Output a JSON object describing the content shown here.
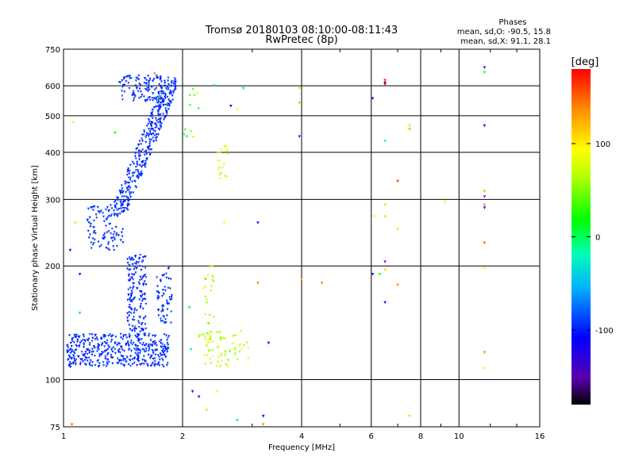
{
  "chart_data": {
    "type": "scatter",
    "title": "Tromsø 20180103 08:10:00-08:11:43",
    "subtitle": "RwPretec (8p)",
    "xlabel": "Frequency [MHz]",
    "ylabel": "Stationary phase Virtual Height [km]",
    "x_scale": "log",
    "y_scale": "log",
    "xlim": [
      1,
      16
    ],
    "ylim": [
      75,
      750
    ],
    "x_ticks": [
      {
        "value": 1,
        "label": "1"
      },
      {
        "value": 2,
        "label": "2"
      },
      {
        "value": 4,
        "label": "4"
      },
      {
        "value": 6,
        "label": "6"
      },
      {
        "value": 8,
        "label": "8"
      },
      {
        "value": 10,
        "label": "10"
      },
      {
        "value": 16,
        "label": "16"
      }
    ],
    "y_ticks": [
      {
        "value": 75,
        "label": "75"
      },
      {
        "value": 100,
        "label": "100"
      },
      {
        "value": 200,
        "label": "200"
      },
      {
        "value": 300,
        "label": "300"
      },
      {
        "value": 400,
        "label": "400"
      },
      {
        "value": 500,
        "label": "500"
      },
      {
        "value": 600,
        "label": "600"
      },
      {
        "value": 750,
        "label": "750"
      }
    ],
    "grid": true,
    "phase_info": {
      "header": "Phases",
      "line_o": "mean, sd,O: -90.5, 15.8",
      "line_x": "mean, sd,X:  91.1, 28.1"
    },
    "colorbar": {
      "label": "[deg]",
      "range": [
        -180,
        180
      ],
      "ticks": [
        {
          "value": 100,
          "label": "100"
        },
        {
          "value": 0,
          "label": "0"
        },
        {
          "value": -100,
          "label": "-100"
        }
      ]
    },
    "clusters": [
      {
        "name": "o-F-trace-upper",
        "n": 360,
        "x": [
          1.3,
          1.92
        ],
        "y": [
          270,
          630
        ],
        "phase": -95,
        "phase_sd": 12,
        "trace": "diag"
      },
      {
        "name": "o-F-top",
        "n": 110,
        "x": [
          1.38,
          1.78
        ],
        "y": [
          545,
          640
        ],
        "phase": -95,
        "phase_sd": 12
      },
      {
        "name": "o-F-low",
        "n": 90,
        "x": [
          1.15,
          1.42
        ],
        "y": [
          220,
          290
        ],
        "phase": -95,
        "phase_sd": 12
      },
      {
        "name": "o-E-cluster",
        "n": 420,
        "x": [
          1.02,
          1.85
        ],
        "y": [
          108,
          132
        ],
        "phase": -95,
        "phase_sd": 14
      },
      {
        "name": "o-E-column",
        "n": 160,
        "x": [
          1.45,
          1.62
        ],
        "y": [
          130,
          215
        ],
        "phase": -95,
        "phase_sd": 12
      },
      {
        "name": "o-E-column-right",
        "n": 60,
        "x": [
          1.72,
          1.88
        ],
        "y": [
          140,
          200
        ],
        "phase": -95,
        "phase_sd": 12
      },
      {
        "name": "x-E-cluster",
        "n": 70,
        "x": [
          2.2,
          2.95
        ],
        "y": [
          108,
          135
        ],
        "phase": 85,
        "phase_sd": 25
      },
      {
        "name": "x-E-column",
        "n": 25,
        "x": [
          2.25,
          2.4
        ],
        "y": [
          130,
          200
        ],
        "phase": 85,
        "phase_sd": 25
      },
      {
        "name": "x-F-column",
        "n": 20,
        "x": [
          2.45,
          2.6
        ],
        "y": [
          340,
          420
        ],
        "phase": 100,
        "phase_sd": 20
      },
      {
        "name": "x-F-sparse",
        "n": 10,
        "x": [
          2.0,
          2.2
        ],
        "y": [
          430,
          600
        ],
        "phase": 60,
        "phase_sd": 40
      }
    ],
    "points": [
      {
        "x": 1.05,
        "y": 76,
        "phase": 150
      },
      {
        "x": 1.06,
        "y": 480,
        "phase": 110
      },
      {
        "x": 1.07,
        "y": 260,
        "phase": 120
      },
      {
        "x": 1.1,
        "y": 190,
        "phase": -100
      },
      {
        "x": 1.04,
        "y": 220,
        "phase": -100
      },
      {
        "x": 2.12,
        "y": 93,
        "phase": -100
      },
      {
        "x": 2.2,
        "y": 90,
        "phase": -100
      },
      {
        "x": 2.3,
        "y": 83,
        "phase": 90
      },
      {
        "x": 2.45,
        "y": 93,
        "phase": 110
      },
      {
        "x": 2.75,
        "y": 78,
        "phase": 10
      },
      {
        "x": 3.2,
        "y": 80,
        "phase": -110
      },
      {
        "x": 3.2,
        "y": 76,
        "phase": 140
      },
      {
        "x": 3.3,
        "y": 125,
        "phase": -120
      },
      {
        "x": 3.1,
        "y": 260,
        "phase": -100
      },
      {
        "x": 2.55,
        "y": 260,
        "phase": 110
      },
      {
        "x": 3.1,
        "y": 180,
        "phase": 140
      },
      {
        "x": 2.65,
        "y": 530,
        "phase": -120
      },
      {
        "x": 2.75,
        "y": 520,
        "phase": 110
      },
      {
        "x": 2.85,
        "y": 590,
        "phase": 10
      },
      {
        "x": 2.4,
        "y": 600,
        "phase": 20
      },
      {
        "x": 3.95,
        "y": 590,
        "phase": 120
      },
      {
        "x": 3.95,
        "y": 540,
        "phase": 130
      },
      {
        "x": 3.95,
        "y": 440,
        "phase": -130
      },
      {
        "x": 4.0,
        "y": 185,
        "phase": 140
      },
      {
        "x": 4.5,
        "y": 180,
        "phase": 140
      },
      {
        "x": 6.05,
        "y": 555,
        "phase": -110
      },
      {
        "x": 6.5,
        "y": 620,
        "phase": 170
      },
      {
        "x": 6.5,
        "y": 610,
        "phase": -170
      },
      {
        "x": 6.5,
        "y": 605,
        "phase": 180
      },
      {
        "x": 6.5,
        "y": 428,
        "phase": -10
      },
      {
        "x": 6.5,
        "y": 290,
        "phase": 120
      },
      {
        "x": 6.5,
        "y": 205,
        "phase": -140
      },
      {
        "x": 6.5,
        "y": 195,
        "phase": 120
      },
      {
        "x": 6.05,
        "y": 190,
        "phase": -120
      },
      {
        "x": 6.3,
        "y": 190,
        "phase": 30
      },
      {
        "x": 6.5,
        "y": 160,
        "phase": -120
      },
      {
        "x": 6.5,
        "y": 270,
        "phase": 120
      },
      {
        "x": 6.1,
        "y": 270,
        "phase": 110
      },
      {
        "x": 7.0,
        "y": 335,
        "phase": 160
      },
      {
        "x": 7.0,
        "y": 250,
        "phase": 90
      },
      {
        "x": 7.0,
        "y": 178,
        "phase": 140
      },
      {
        "x": 7.5,
        "y": 470,
        "phase": 120
      },
      {
        "x": 7.5,
        "y": 460,
        "phase": 130
      },
      {
        "x": 7.5,
        "y": 80,
        "phase": 120
      },
      {
        "x": 9.2,
        "y": 295,
        "phase": 110
      },
      {
        "x": 11.6,
        "y": 670,
        "phase": -100
      },
      {
        "x": 11.6,
        "y": 650,
        "phase": 30
      },
      {
        "x": 11.6,
        "y": 470,
        "phase": -120
      },
      {
        "x": 11.6,
        "y": 315,
        "phase": 130
      },
      {
        "x": 11.6,
        "y": 305,
        "phase": -150
      },
      {
        "x": 11.6,
        "y": 290,
        "phase": 140
      },
      {
        "x": 11.6,
        "y": 285,
        "phase": -130
      },
      {
        "x": 11.6,
        "y": 230,
        "phase": 150
      },
      {
        "x": 11.6,
        "y": 197,
        "phase": 100
      },
      {
        "x": 11.6,
        "y": 118,
        "phase": 140
      },
      {
        "x": 11.6,
        "y": 107,
        "phase": 110
      },
      {
        "x": 1.7,
        "y": 645,
        "phase": 140
      },
      {
        "x": 1.75,
        "y": 560,
        "phase": 20
      },
      {
        "x": 2.05,
        "y": 440,
        "phase": 0
      },
      {
        "x": 2.08,
        "y": 155,
        "phase": 20
      },
      {
        "x": 2.1,
        "y": 120,
        "phase": 0
      },
      {
        "x": 1.35,
        "y": 450,
        "phase": 40
      },
      {
        "x": 1.1,
        "y": 150,
        "phase": 20
      }
    ]
  }
}
